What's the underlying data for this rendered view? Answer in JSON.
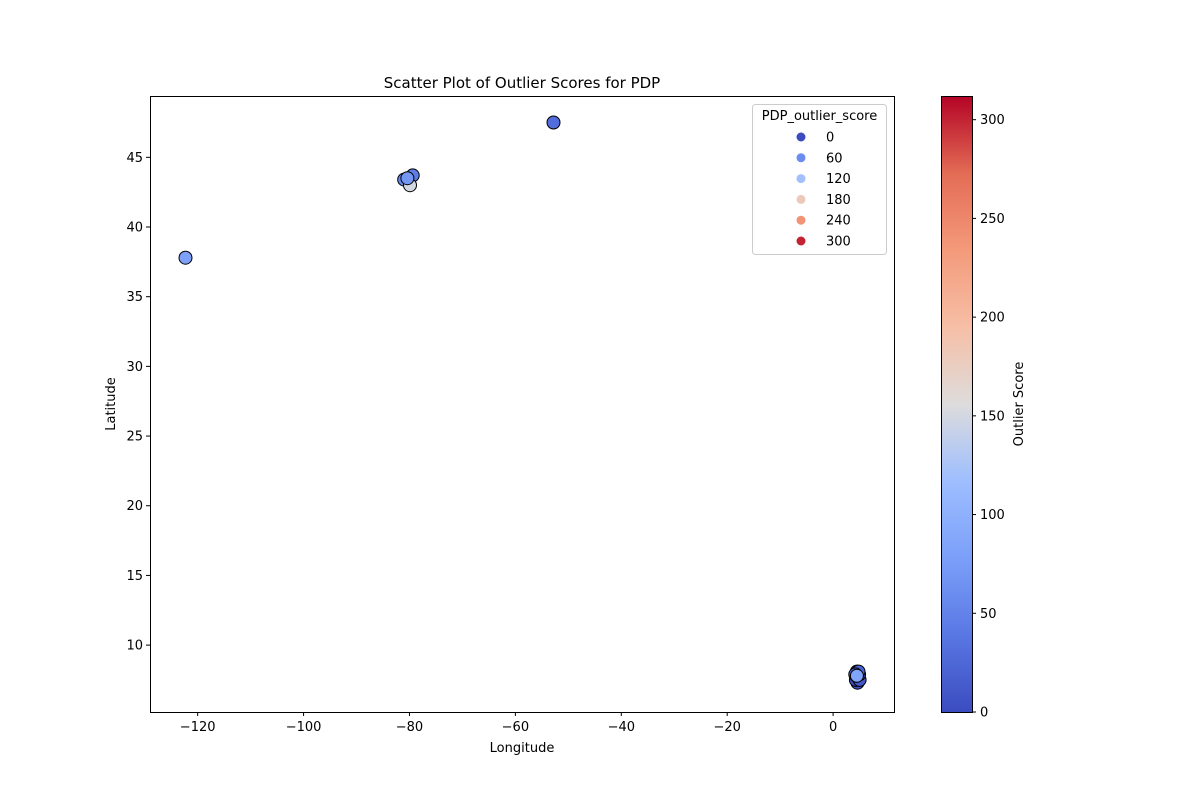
{
  "chart_data": {
    "type": "scatter",
    "title": "Scatter Plot of Outlier Scores for PDP",
    "xlabel": "Longitude",
    "ylabel": "Latitude",
    "xlim": [
      -129,
      11.5
    ],
    "ylim": [
      5.2,
      49.4
    ],
    "x_ticks": [
      -120,
      -100,
      -80,
      -60,
      -40,
      -20,
      0
    ],
    "y_ticks": [
      10,
      15,
      20,
      25,
      30,
      35,
      40,
      45
    ],
    "grid": false,
    "colormap": "coolwarm",
    "colorbar": {
      "label": "Outlier Score",
      "range": [
        0,
        312
      ],
      "ticks": [
        0,
        50,
        100,
        150,
        200,
        250,
        300
      ]
    },
    "legend": {
      "title": "PDP_outlier_score",
      "position": "upper right",
      "entries": [
        {
          "label": "0",
          "value": 0
        },
        {
          "label": "60",
          "value": 60
        },
        {
          "label": "120",
          "value": 120
        },
        {
          "label": "180",
          "value": 180
        },
        {
          "label": "240",
          "value": 240
        },
        {
          "label": "300",
          "value": 300
        }
      ]
    },
    "points": [
      {
        "x": 4.6,
        "y": 7.3,
        "score": 0
      },
      {
        "x": 4.3,
        "y": 7.5,
        "score": 5
      },
      {
        "x": 5.0,
        "y": 7.5,
        "score": 10
      },
      {
        "x": 4.4,
        "y": 7.8,
        "score": 15
      },
      {
        "x": 4.9,
        "y": 7.9,
        "score": 8
      },
      {
        "x": 4.5,
        "y": 8.1,
        "score": 12
      },
      {
        "x": 4.8,
        "y": 8.1,
        "score": 20
      },
      {
        "x": 4.2,
        "y": 7.9,
        "score": 18
      },
      {
        "x": -52.8,
        "y": 47.5,
        "score": 30
      },
      {
        "x": -79.4,
        "y": 43.7,
        "score": 45
      },
      {
        "x": -81.0,
        "y": 43.4,
        "score": 55
      },
      {
        "x": -79.9,
        "y": 43.0,
        "score": 150
      },
      {
        "x": -80.4,
        "y": 43.5,
        "score": 70
      },
      {
        "x": -122.3,
        "y": 37.8,
        "score": 80
      },
      {
        "x": 4.5,
        "y": 7.8,
        "score": 85
      }
    ]
  }
}
